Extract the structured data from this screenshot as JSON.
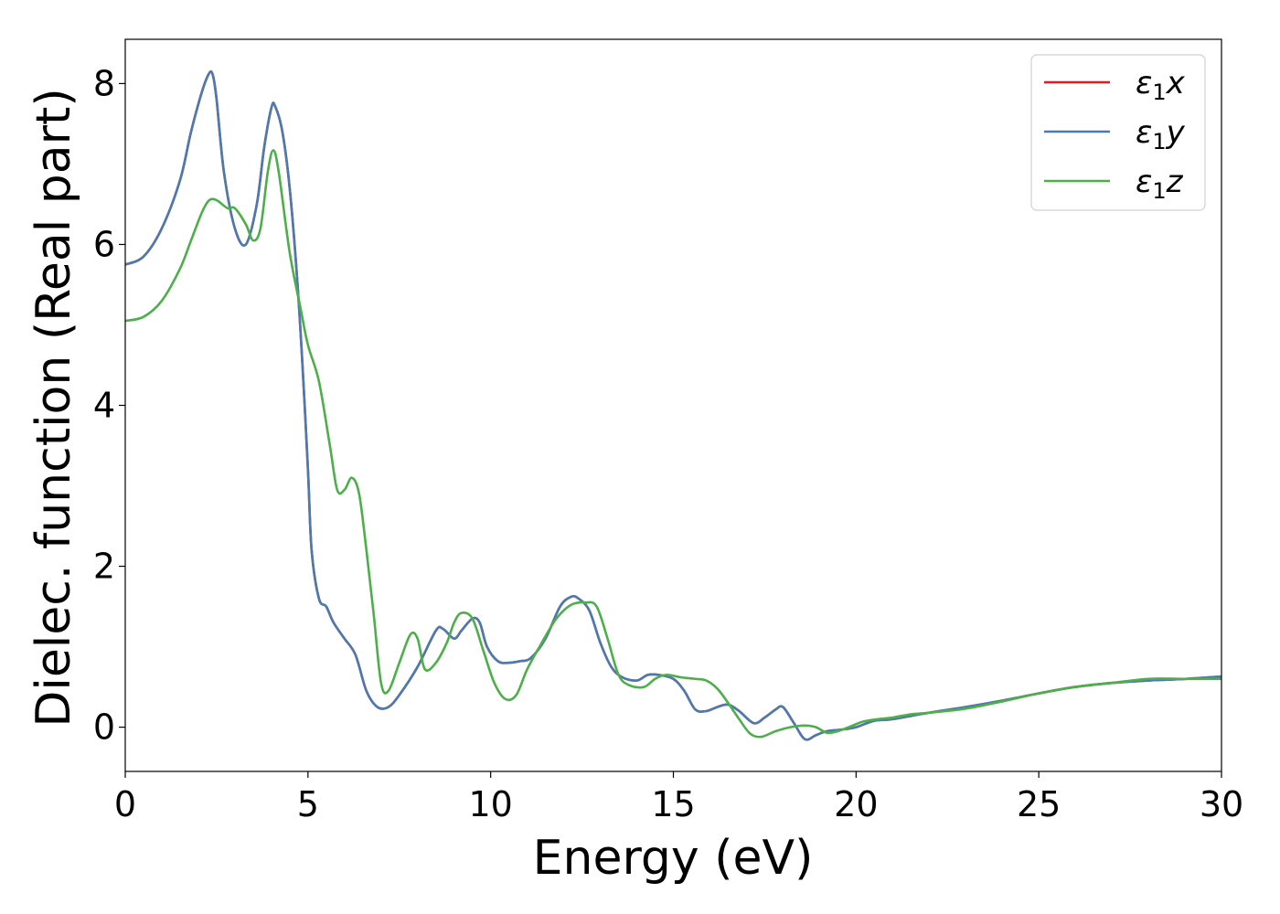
{
  "chart_data": {
    "type": "line",
    "title": "",
    "xlabel": "Energy (eV)",
    "ylabel": "Dielec. function (Real part)",
    "xlim": [
      0,
      30
    ],
    "ylim": [
      -0.55,
      8.55
    ],
    "xticks": [
      0,
      5,
      10,
      15,
      20,
      25,
      30
    ],
    "yticks": [
      0,
      2,
      4,
      6,
      8
    ],
    "grid": false,
    "legend_position": "top-right",
    "series": [
      {
        "name": "ε1x",
        "legend_main": "ε",
        "legend_sub": "1",
        "legend_var": "x",
        "color": "#e41a1c",
        "x": [
          0,
          0.5,
          1.0,
          1.5,
          1.8,
          2.1,
          2.3,
          2.4,
          2.5,
          2.7,
          3.0,
          3.3,
          3.6,
          3.8,
          4.0,
          4.1,
          4.3,
          4.5,
          4.7,
          4.85,
          5.0,
          5.1,
          5.3,
          5.5,
          5.7,
          6.0,
          6.3,
          6.6,
          6.9,
          7.2,
          7.5,
          8.0,
          8.5,
          8.7,
          9.0,
          9.2,
          9.5,
          9.7,
          9.9,
          10.2,
          10.5,
          10.8,
          11.1,
          11.5,
          11.9,
          12.2,
          12.4,
          12.7,
          13.0,
          13.3,
          13.6,
          14.0,
          14.3,
          14.6,
          15.0,
          15.3,
          15.6,
          15.9,
          16.2,
          16.5,
          16.8,
          17.2,
          17.5,
          17.8,
          18.0,
          18.3,
          18.6,
          18.9,
          19.2,
          19.6,
          20.0,
          20.5,
          21.0,
          22.0,
          23.0,
          24.0,
          25.0,
          26.0,
          27.0,
          28.0,
          29.0,
          30.0
        ],
        "y": [
          5.75,
          5.85,
          6.2,
          6.8,
          7.4,
          7.9,
          8.13,
          8.1,
          7.8,
          6.9,
          6.2,
          6.0,
          6.5,
          7.2,
          7.7,
          7.72,
          7.4,
          6.7,
          5.6,
          4.5,
          3.2,
          2.2,
          1.6,
          1.5,
          1.3,
          1.1,
          0.9,
          0.45,
          0.25,
          0.25,
          0.4,
          0.75,
          1.2,
          1.22,
          1.1,
          1.2,
          1.35,
          1.3,
          1.0,
          0.82,
          0.8,
          0.82,
          0.86,
          1.1,
          1.5,
          1.62,
          1.6,
          1.45,
          1.05,
          0.75,
          0.62,
          0.58,
          0.65,
          0.65,
          0.6,
          0.45,
          0.22,
          0.2,
          0.25,
          0.28,
          0.2,
          0.05,
          0.12,
          0.22,
          0.25,
          0.05,
          -0.15,
          -0.1,
          -0.05,
          -0.03,
          0.0,
          0.08,
          0.1,
          0.18,
          0.25,
          0.33,
          0.42,
          0.5,
          0.55,
          0.58,
          0.6,
          0.63
        ]
      },
      {
        "name": "ε1y",
        "legend_main": "ε",
        "legend_sub": "1",
        "legend_var": "y",
        "color": "#4a7bb0",
        "x": [
          0,
          0.5,
          1.0,
          1.5,
          1.8,
          2.1,
          2.3,
          2.4,
          2.5,
          2.7,
          3.0,
          3.3,
          3.6,
          3.8,
          4.0,
          4.1,
          4.3,
          4.5,
          4.7,
          4.85,
          5.0,
          5.1,
          5.3,
          5.5,
          5.7,
          6.0,
          6.3,
          6.6,
          6.9,
          7.2,
          7.5,
          8.0,
          8.5,
          8.7,
          9.0,
          9.2,
          9.5,
          9.7,
          9.9,
          10.2,
          10.5,
          10.8,
          11.1,
          11.5,
          11.9,
          12.2,
          12.4,
          12.7,
          13.0,
          13.3,
          13.6,
          14.0,
          14.3,
          14.6,
          15.0,
          15.3,
          15.6,
          15.9,
          16.2,
          16.5,
          16.8,
          17.2,
          17.5,
          17.8,
          18.0,
          18.3,
          18.6,
          18.9,
          19.2,
          19.6,
          20.0,
          20.5,
          21.0,
          22.0,
          23.0,
          24.0,
          25.0,
          26.0,
          27.0,
          28.0,
          29.0,
          30.0
        ],
        "y": [
          5.75,
          5.85,
          6.2,
          6.8,
          7.4,
          7.9,
          8.13,
          8.1,
          7.8,
          6.9,
          6.2,
          6.0,
          6.5,
          7.2,
          7.7,
          7.72,
          7.4,
          6.7,
          5.6,
          4.5,
          3.2,
          2.2,
          1.6,
          1.5,
          1.3,
          1.1,
          0.9,
          0.45,
          0.25,
          0.25,
          0.4,
          0.75,
          1.2,
          1.22,
          1.1,
          1.2,
          1.35,
          1.3,
          1.0,
          0.82,
          0.8,
          0.82,
          0.86,
          1.1,
          1.5,
          1.62,
          1.6,
          1.45,
          1.05,
          0.75,
          0.62,
          0.58,
          0.65,
          0.65,
          0.6,
          0.45,
          0.22,
          0.2,
          0.25,
          0.28,
          0.2,
          0.05,
          0.12,
          0.22,
          0.25,
          0.05,
          -0.15,
          -0.1,
          -0.05,
          -0.03,
          0.0,
          0.08,
          0.1,
          0.18,
          0.25,
          0.33,
          0.42,
          0.5,
          0.55,
          0.58,
          0.6,
          0.63
        ]
      },
      {
        "name": "ε1z",
        "legend_main": "ε",
        "legend_sub": "1",
        "legend_var": "z",
        "color": "#4daf4a",
        "x": [
          0,
          0.5,
          1.0,
          1.5,
          1.8,
          2.1,
          2.3,
          2.5,
          2.8,
          3.0,
          3.3,
          3.5,
          3.7,
          3.9,
          4.05,
          4.2,
          4.5,
          4.8,
          5.0,
          5.3,
          5.6,
          5.8,
          6.0,
          6.2,
          6.4,
          6.6,
          6.8,
          7.0,
          7.2,
          7.5,
          7.8,
          8.0,
          8.2,
          8.5,
          8.8,
          9.0,
          9.2,
          9.5,
          9.8,
          10.1,
          10.4,
          10.7,
          11.0,
          11.4,
          11.8,
          12.2,
          12.6,
          12.9,
          13.2,
          13.5,
          13.8,
          14.2,
          14.5,
          14.8,
          15.2,
          15.6,
          15.9,
          16.2,
          16.5,
          16.8,
          17.1,
          17.4,
          17.8,
          18.2,
          18.6,
          18.9,
          19.2,
          19.5,
          19.8,
          20.2,
          20.6,
          21.0,
          21.5,
          22.0,
          23.0,
          24.0,
          25.0,
          26.0,
          27.0,
          28.0,
          29.0,
          30.0
        ],
        "y": [
          5.05,
          5.1,
          5.3,
          5.7,
          6.05,
          6.4,
          6.55,
          6.55,
          6.45,
          6.45,
          6.25,
          6.05,
          6.2,
          6.9,
          7.17,
          6.9,
          5.9,
          5.2,
          4.75,
          4.3,
          3.5,
          2.95,
          2.95,
          3.1,
          2.9,
          2.2,
          1.4,
          0.55,
          0.45,
          0.8,
          1.15,
          1.1,
          0.72,
          0.8,
          1.05,
          1.3,
          1.42,
          1.35,
          0.95,
          0.55,
          0.35,
          0.4,
          0.72,
          1.05,
          1.35,
          1.52,
          1.55,
          1.5,
          1.1,
          0.65,
          0.52,
          0.5,
          0.6,
          0.65,
          0.62,
          0.6,
          0.58,
          0.48,
          0.3,
          0.1,
          -0.08,
          -0.12,
          -0.05,
          0.0,
          0.02,
          0.0,
          -0.07,
          -0.05,
          0.0,
          0.07,
          0.1,
          0.12,
          0.16,
          0.18,
          0.23,
          0.32,
          0.42,
          0.5,
          0.55,
          0.6,
          0.6,
          0.6
        ]
      }
    ]
  }
}
